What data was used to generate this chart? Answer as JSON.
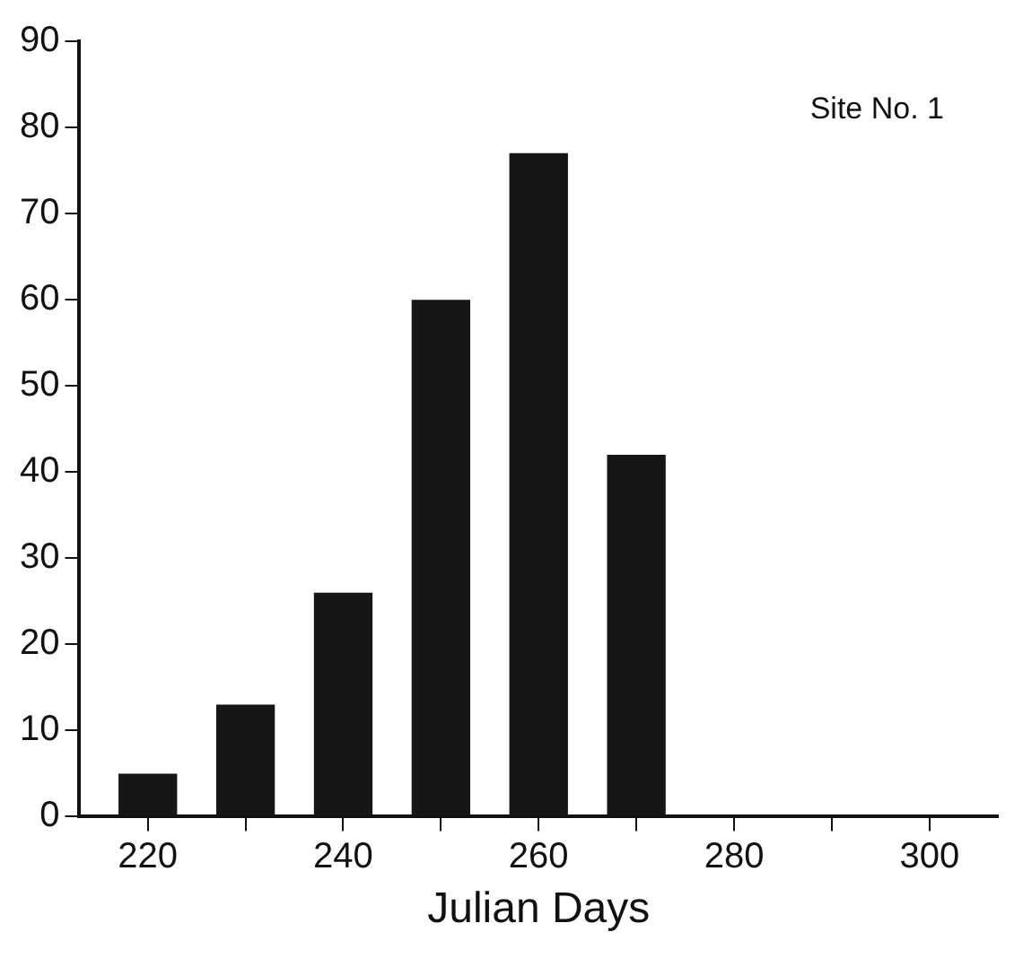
{
  "chart_data": {
    "type": "bar",
    "xlabel": "Julian Days",
    "annotations": [
      "Site No. 1"
    ],
    "x": [
      220,
      230,
      240,
      250,
      260,
      270
    ],
    "values": [
      5,
      13,
      26,
      60,
      77,
      42
    ],
    "color": "#161616",
    "xlim": [
      213,
      307
    ],
    "xticks": [
      220,
      {
        "value": 230,
        "label": null
      },
      240,
      {
        "value": 250,
        "label": null
      },
      260,
      {
        "value": 270,
        "label": null
      },
      280,
      {
        "value": 290,
        "label": null
      },
      300
    ],
    "ylim": [
      0,
      90
    ],
    "yticks": [
      0,
      10,
      20,
      30,
      40,
      50,
      60,
      70,
      80,
      90
    ],
    "grid": false,
    "legend": false
  }
}
